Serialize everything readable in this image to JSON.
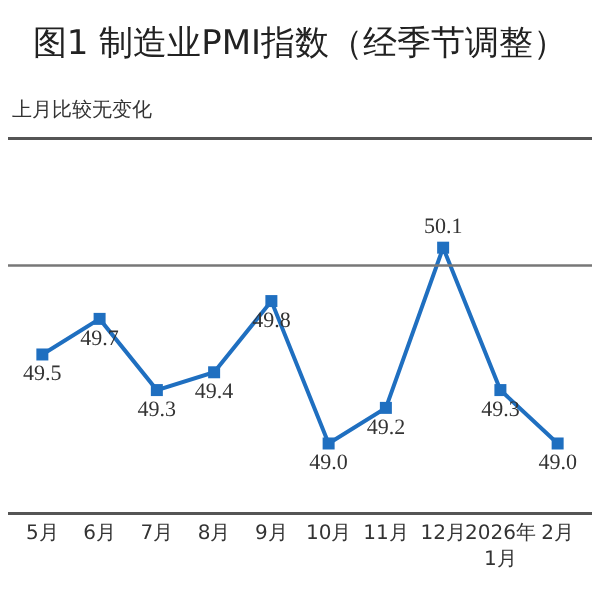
{
  "chart_data": {
    "type": "line",
    "title": "图1 制造业PMI指数（经季节调整）",
    "subtitle": "上月比较无变化",
    "categories": [
      "5月",
      "6月",
      "7月",
      "8月",
      "9月",
      "10月",
      "11月",
      "12月",
      "2026年\n1月",
      "2月"
    ],
    "series": [
      {
        "color": "#1f6fc0",
        "values": [
          49.5,
          49.7,
          49.3,
          49.4,
          49.8,
          49.0,
          49.2,
          50.1,
          49.3,
          49.0
        ],
        "value_labels": [
          "49.5",
          "49.7",
          "49.3",
          "49.4",
          "49.8",
          "49.0",
          "49.2",
          "50.1",
          "49.3",
          "49.0"
        ]
      }
    ],
    "marker": "square",
    "line_style": "solid",
    "grid": false,
    "ref_lines": [
      {
        "axis": "y",
        "value": 50,
        "label": null,
        "color": "#777777"
      }
    ]
  }
}
